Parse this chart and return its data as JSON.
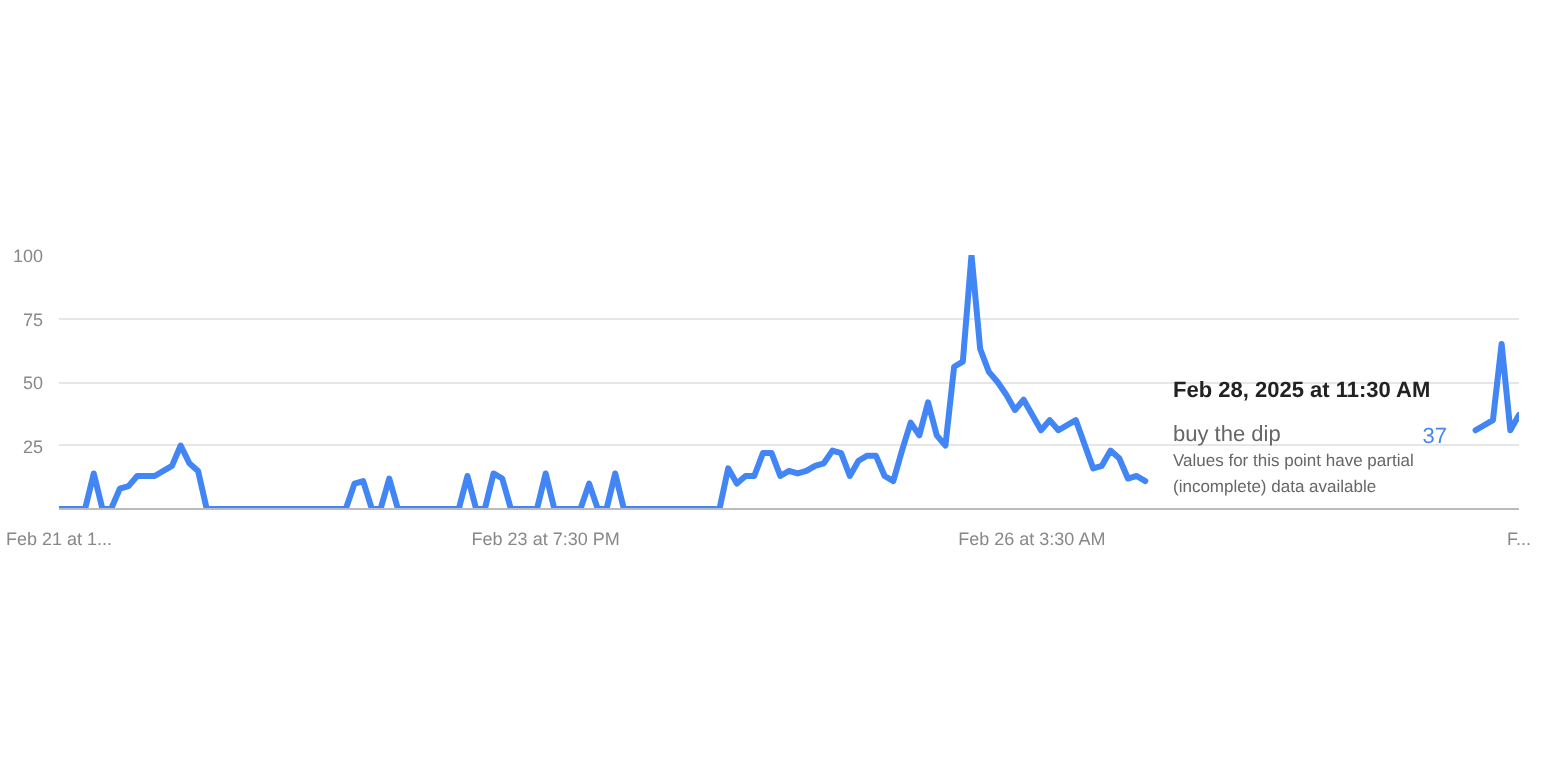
{
  "chart_data": {
    "type": "line",
    "x": [
      "2025-02-21T11:30",
      "2025-02-21T14:30",
      "2025-02-21T15:30",
      "2025-02-21T16:30",
      "2025-02-21T17:30",
      "2025-02-21T18:30",
      "2025-02-21T19:30",
      "2025-02-21T20:30",
      "2025-02-21T22:30",
      "2025-02-22T00:30",
      "2025-02-22T01:30",
      "2025-02-22T02:30",
      "2025-02-22T03:30",
      "2025-02-22T04:30",
      "2025-02-22T20:30",
      "2025-02-22T21:30",
      "2025-02-22T22:30",
      "2025-02-22T23:30",
      "2025-02-23T00:30",
      "2025-02-23T01:30",
      "2025-02-23T02:30",
      "2025-02-23T09:30",
      "2025-02-23T10:30",
      "2025-02-23T11:30",
      "2025-02-23T12:30",
      "2025-02-23T13:30",
      "2025-02-23T14:30",
      "2025-02-23T15:30",
      "2025-02-23T18:30",
      "2025-02-23T19:30",
      "2025-02-23T20:30",
      "2025-02-23T23:30",
      "2025-02-24T00:30",
      "2025-02-24T01:30",
      "2025-02-24T02:30",
      "2025-02-24T03:30",
      "2025-02-24T04:30",
      "2025-02-24T15:30",
      "2025-02-24T16:30",
      "2025-02-24T17:30",
      "2025-02-24T18:30",
      "2025-02-24T19:30",
      "2025-02-24T20:30",
      "2025-02-24T21:30",
      "2025-02-24T22:30",
      "2025-02-24T23:30",
      "2025-02-25T00:30",
      "2025-02-25T01:30",
      "2025-02-25T02:30",
      "2025-02-25T03:30",
      "2025-02-25T04:30",
      "2025-02-25T05:30",
      "2025-02-25T06:30",
      "2025-02-25T07:30",
      "2025-02-25T08:30",
      "2025-02-25T09:30",
      "2025-02-25T10:30",
      "2025-02-25T11:30",
      "2025-02-25T12:30",
      "2025-02-25T13:30",
      "2025-02-25T14:30",
      "2025-02-25T15:30",
      "2025-02-25T16:30",
      "2025-02-25T17:30",
      "2025-02-25T18:30",
      "2025-02-25T19:30",
      "2025-02-25T20:30",
      "2025-02-25T21:30",
      "2025-02-25T22:30",
      "2025-02-25T23:30",
      "2025-02-26T00:30",
      "2025-02-26T01:30",
      "2025-02-26T02:30",
      "2025-02-26T04:30",
      "2025-02-26T05:30",
      "2025-02-26T06:30",
      "2025-02-26T08:30",
      "2025-02-26T10:30",
      "2025-02-26T11:30",
      "2025-02-26T12:30",
      "2025-02-26T13:30",
      "2025-02-26T14:30",
      "2025-02-26T15:30",
      "2025-02-26T16:30",
      "2025-02-26T17:30",
      "2025-02-28T06:30",
      "2025-02-28T08:30",
      "2025-02-28T09:30",
      "2025-02-28T10:30",
      "2025-02-28T11:30"
    ],
    "series": [
      {
        "color": "#4285f4",
        "values": [
          0,
          0,
          14,
          0,
          0,
          8,
          9,
          13,
          13,
          17,
          25,
          18,
          15,
          0,
          0,
          10,
          11,
          0,
          0,
          12,
          0,
          0,
          13,
          0,
          0,
          14,
          12,
          0,
          0,
          14,
          0,
          0,
          10,
          0,
          0,
          14,
          0,
          0,
          16,
          10,
          13,
          13,
          22,
          22,
          13,
          15,
          14,
          15,
          17,
          18,
          23,
          22,
          13,
          19,
          21,
          21,
          13,
          11,
          23,
          34,
          29,
          42,
          29,
          25,
          56,
          58,
          100,
          63,
          54,
          50,
          45,
          39,
          43,
          31,
          35,
          31,
          35,
          16,
          17,
          23,
          20,
          12,
          13,
          11,
          null,
          31,
          35,
          65,
          31,
          37
        ]
      }
    ],
    "xlim": [
      "2025-02-21T11:30",
      "2025-02-28T11:30"
    ],
    "xticks": [
      {
        "value": "2025-02-21T11:30",
        "label": "Feb 21 at 1..."
      },
      {
        "value": "2025-02-23T19:30",
        "label": "Feb 23 at 7:30 PM"
      },
      {
        "value": "2025-02-26T03:30",
        "label": "Feb 26 at 3:30 AM"
      },
      {
        "value": "2025-02-28T11:30",
        "label": "F..."
      }
    ],
    "ylim": [
      0,
      100
    ],
    "yticks": [
      25,
      50,
      75,
      100
    ],
    "grid": "y",
    "annotations": [
      "Feb 28, 2025 at 11:30 AM",
      "buy the dip",
      "37",
      "Values for this point have partial\n(incomplete) data available"
    ]
  }
}
